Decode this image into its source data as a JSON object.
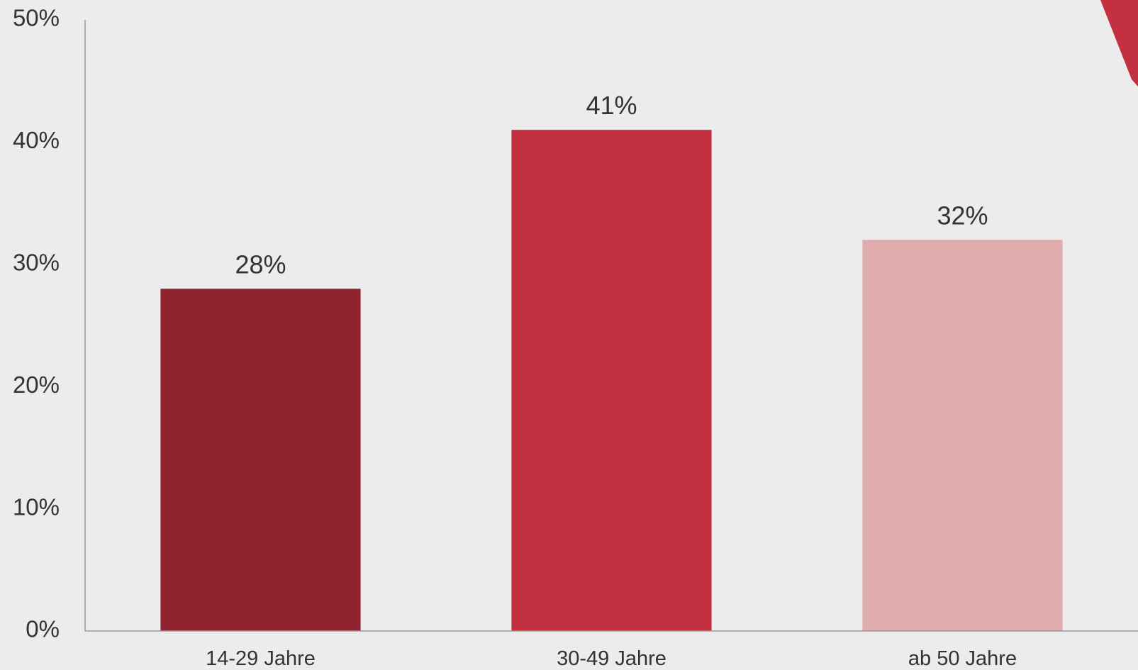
{
  "chart_data": {
    "type": "bar",
    "title": "",
    "xlabel": "",
    "ylabel": "",
    "categories": [
      "14-29 Jahre",
      "30-49 Jahre",
      "ab 50 Jahre"
    ],
    "values": [
      28,
      41,
      32
    ],
    "data_labels": [
      "28%",
      "41%",
      "32%"
    ],
    "ylim": [
      0,
      50
    ],
    "yticks": [
      0,
      10,
      20,
      30,
      40,
      50
    ],
    "ytick_labels": [
      "0%",
      "10%",
      "20%",
      "30%",
      "40%",
      "50%"
    ],
    "grid": false,
    "legend": "none",
    "colors": [
      "#8f2430",
      "#c3303f",
      "#dfacae"
    ],
    "background_color": "#ececec",
    "axis_color": "#999999",
    "corner_shape_color": "#c3303f"
  }
}
